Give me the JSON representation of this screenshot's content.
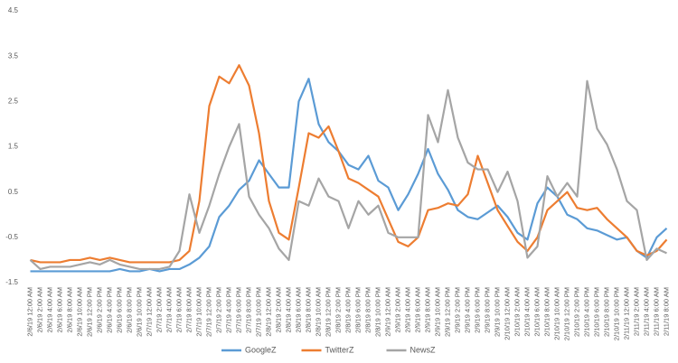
{
  "chart_data": {
    "type": "line",
    "categories": [
      "2/6/19 12:00 AM",
      "2/6/19 2:00 AM",
      "2/6/19 4:00 AM",
      "2/6/19 6:00 AM",
      "2/6/19 8:00 AM",
      "2/6/19 10:00 AM",
      "2/6/19 12:00 PM",
      "2/6/19 2:00 PM",
      "2/6/19 4:00 PM",
      "2/6/19 6:00 PM",
      "2/6/19 8:00 PM",
      "2/6/19 10:00 PM",
      "2/7/19 12:00 AM",
      "2/7/19 2:00 AM",
      "2/7/19 4:00 AM",
      "2/7/19 6:00 AM",
      "2/7/19 8:00 AM",
      "2/7/19 10:00 AM",
      "2/7/19 12:00 PM",
      "2/7/19 2:00 PM",
      "2/7/19 4:00 PM",
      "2/7/19 6:00 PM",
      "2/7/19 8:00 PM",
      "2/7/19 10:00 PM",
      "2/8/19 12:00 AM",
      "2/8/19 2:00 AM",
      "2/8/19 4:00 AM",
      "2/8/19 6:00 AM",
      "2/8/19 8:00 AM",
      "2/8/19 10:00 AM",
      "2/8/19 12:00 PM",
      "2/8/19 2:00 PM",
      "2/8/19 4:00 PM",
      "2/8/19 6:00 PM",
      "2/8/19 8:00 PM",
      "2/8/19 10:00 PM",
      "2/9/19 12:00 AM",
      "2/9/19 2:00 AM",
      "2/9/19 4:00 AM",
      "2/9/19 6:00 AM",
      "2/9/19 8:00 AM",
      "2/9/19 10:00 AM",
      "2/9/19 12:00 PM",
      "2/9/19 2:00 PM",
      "2/9/19 4:00 PM",
      "2/9/19 6:00 PM",
      "2/9/19 8:00 PM",
      "2/9/19 10:00 PM",
      "2/10/19 12:00 AM",
      "2/10/19 2:00 AM",
      "2/10/19 4:00 AM",
      "2/10/19 6:00 AM",
      "2/10/19 8:00 AM",
      "2/10/19 10:00 AM",
      "2/10/19 12:00 PM",
      "2/10/19 2:00 PM",
      "2/10/19 4:00 PM",
      "2/10/19 6:00 PM",
      "2/10/19 8:00 PM",
      "2/10/19 10:00 PM",
      "2/11/19 12:00 AM",
      "2/11/19 2:00 AM",
      "2/11/19 4:00 AM",
      "2/11/19 6:00 AM",
      "2/11/19 8:00 AM"
    ],
    "series": [
      {
        "name": "GoogleZ",
        "color": "#5b9bd5",
        "values": [
          -1.25,
          -1.25,
          -1.25,
          -1.25,
          -1.25,
          -1.25,
          -1.25,
          -1.25,
          -1.25,
          -1.2,
          -1.25,
          -1.25,
          -1.2,
          -1.25,
          -1.2,
          -1.2,
          -1.1,
          -0.95,
          -0.7,
          -0.05,
          0.2,
          0.55,
          0.75,
          1.2,
          0.9,
          0.6,
          0.6,
          2.5,
          3.0,
          2.0,
          1.6,
          1.4,
          1.1,
          1.0,
          1.3,
          0.75,
          0.6,
          0.1,
          0.45,
          0.9,
          1.45,
          0.9,
          0.55,
          0.1,
          -0.05,
          -0.1,
          0.05,
          0.2,
          -0.05,
          -0.4,
          -0.55,
          0.25,
          0.6,
          0.4,
          0.0,
          -0.1,
          -0.3,
          -0.35,
          -0.45,
          -0.55,
          -0.5,
          -0.8,
          -0.95,
          -0.5,
          -0.3
        ]
      },
      {
        "name": "TwitterZ",
        "color": "#ed7d31",
        "values": [
          -1.0,
          -1.05,
          -1.05,
          -1.05,
          -1.0,
          -1.0,
          -0.95,
          -1.0,
          -0.95,
          -1.0,
          -1.05,
          -1.05,
          -1.05,
          -1.05,
          -1.05,
          -1.0,
          -0.8,
          0.3,
          2.4,
          3.05,
          2.9,
          3.3,
          2.85,
          1.8,
          0.3,
          -0.4,
          -0.55,
          0.6,
          1.8,
          1.7,
          1.95,
          1.4,
          0.8,
          0.7,
          0.55,
          0.4,
          -0.1,
          -0.6,
          -0.7,
          -0.5,
          0.1,
          0.15,
          0.25,
          0.2,
          0.45,
          1.3,
          0.7,
          0.1,
          -0.25,
          -0.6,
          -0.8,
          -0.5,
          0.1,
          0.3,
          0.5,
          0.15,
          0.1,
          0.15,
          -0.1,
          -0.3,
          -0.5,
          -0.8,
          -0.9,
          -0.8,
          -0.55
        ]
      },
      {
        "name": "NewsZ",
        "color": "#a5a5a5",
        "values": [
          -1.0,
          -1.2,
          -1.15,
          -1.15,
          -1.15,
          -1.1,
          -1.05,
          -1.1,
          -1.0,
          -1.1,
          -1.15,
          -1.2,
          -1.2,
          -1.2,
          -1.15,
          -0.8,
          0.45,
          -0.4,
          0.2,
          0.9,
          1.5,
          2.0,
          0.4,
          0.0,
          -0.3,
          -0.75,
          -1.0,
          0.3,
          0.2,
          0.8,
          0.4,
          0.3,
          -0.3,
          0.3,
          0.0,
          0.2,
          -0.4,
          -0.5,
          -0.5,
          -0.5,
          2.2,
          1.6,
          2.75,
          1.7,
          1.15,
          1.0,
          1.0,
          0.5,
          0.95,
          0.3,
          -0.95,
          -0.7,
          0.85,
          0.4,
          0.7,
          0.4,
          2.95,
          1.9,
          1.55,
          1.0,
          0.3,
          0.1,
          -1.0,
          -0.75,
          -0.85
        ]
      }
    ],
    "ylim": [
      -1.5,
      4.5
    ],
    "yticks": [
      -1.5,
      -0.5,
      0.5,
      1.5,
      2.5,
      3.5,
      4.5
    ],
    "grid": false,
    "legend": "bottom"
  }
}
